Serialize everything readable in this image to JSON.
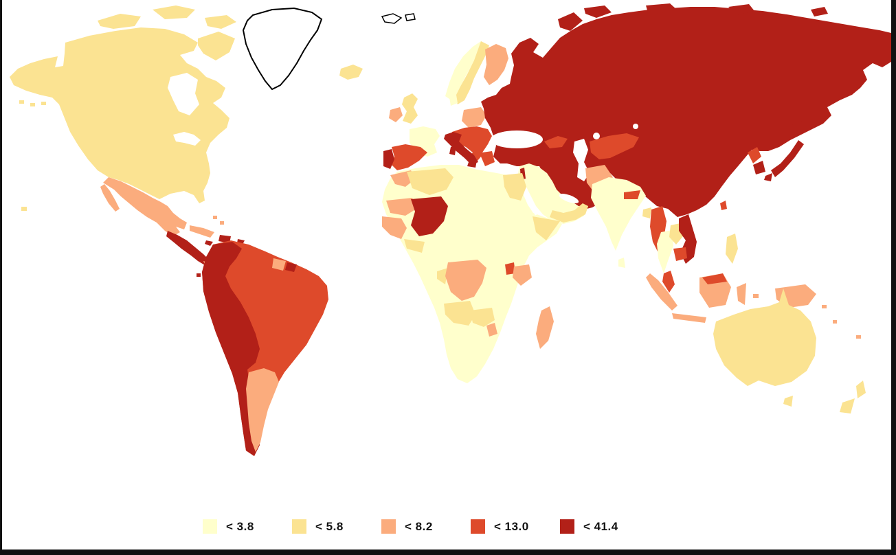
{
  "palette": {
    "c1": "#FFFFCC",
    "c2": "#FBE392",
    "c3": "#FBAC7D",
    "c4": "#DE4A2B",
    "c5": "#B22018",
    "no_data": "#FFFFFF",
    "outline": "#000000",
    "frame": "#111111",
    "background": "#FFFFFF"
  },
  "legend": {
    "items": [
      {
        "label": "< 3.8",
        "category": "c1"
      },
      {
        "label": "< 5.8",
        "category": "c2"
      },
      {
        "label": "< 8.2",
        "category": "c3"
      },
      {
        "label": "< 13.0",
        "category": "c4"
      },
      {
        "label": "< 41.4",
        "category": "c5"
      }
    ]
  },
  "map": {
    "type": "choropleth-world-map",
    "regions": {
      "north-america": "c2",
      "arctic-islands": "c2",
      "aleutians": "c2",
      "hawaii": "c2",
      "greenland": "no_data",
      "svalbard": "no_data",
      "iceland": "c2",
      "mexico": "c3",
      "central-america": "c5",
      "panama": "c3",
      "cuba": "c3",
      "bahamas": "c3",
      "hispaniola": "c5",
      "jamaica": "c5",
      "puerto-rico": "c5",
      "lesser-antilles": "c4",
      "brazil-venezuela": "c4",
      "andean-countries": "c5",
      "argentina": "c3",
      "guyana": "c3",
      "suriname": "c5",
      "galapagos": "c5",
      "norway": "c1",
      "sweden": "c2",
      "finland": "c3",
      "denmark": "c1",
      "united-kingdom": "c2",
      "ireland": "c3",
      "france": "c1",
      "poland": "c3",
      "central-southeast-europe": "c4",
      "italy": "c5",
      "spain": "c4",
      "portugal": "c5",
      "russia-china-block": "c5",
      "russia-arctic-islands": "c5",
      "central-asia": "c4",
      "caucasus": "c4",
      "middle-east": "c1",
      "yemen-oman": "c2",
      "israel": "c5",
      "africa-interior": "c1",
      "morocco": "c3",
      "algeria": "c2",
      "egypt": "c2",
      "mauritania": "c3",
      "mali": "c5",
      "senegal-guinea": "c3",
      "ghana-ivory-coast": "c2",
      "somalia": "c2",
      "dr-congo": "c3",
      "congo-gabon": "c2",
      "uganda": "c4",
      "kenya": "c3",
      "angola": "c2",
      "zambia": "c2",
      "zimbabwe-malawi": "c3",
      "madagascar": "c3",
      "pakistan": "c3",
      "india": "c1",
      "sri-lanka": "c1",
      "nepal": "c4",
      "bangladesh": "c2",
      "myanmar": "c4",
      "thailand": "c1",
      "laos": "c2",
      "vietnam": "c5",
      "cambodia": "c4",
      "malaysia": "c4",
      "malaysia-borneo": "c4",
      "indonesia": "c3",
      "philippines": "c2",
      "taiwan": "c4",
      "north-korea": "c4",
      "south-korea": "c5",
      "japan": "c5",
      "papua-new-guinea": "c3",
      "solomon-islands": "c3",
      "vanuatu": "c3",
      "fiji": "c3",
      "australia": "c2",
      "new-zealand": "c2"
    }
  }
}
